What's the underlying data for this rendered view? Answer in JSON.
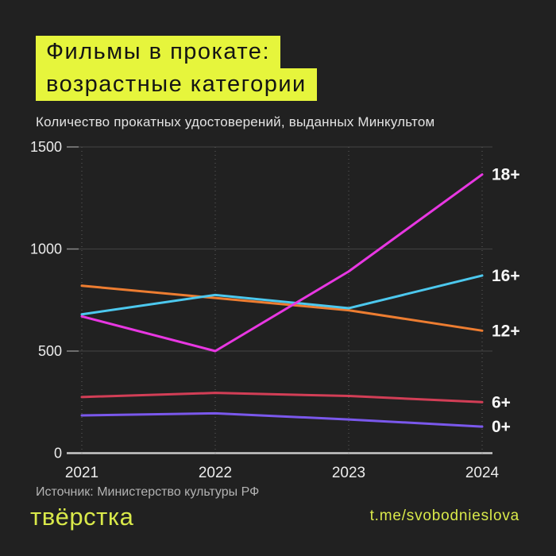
{
  "title": {
    "line1": "Фильмы в прокате:",
    "line2": "возрастные категории"
  },
  "subtitle": "Количество прокатных удостоверений, выданных Минкультом",
  "source": "Источник: Министерство культуры РФ",
  "footer": {
    "logo": "твёрстка",
    "link": "t.me/svobodnieslova"
  },
  "colors": {
    "background": "#212121",
    "accent_yellow": "#e6f53c",
    "footer_yellow": "#d9e94a",
    "grid": "#3f3f3f",
    "grid_dotted": "#5e5e5e",
    "axis": "#c9c9c9",
    "text_light": "#ececec",
    "series_label": "#f7f7f7"
  },
  "chart_data": {
    "type": "line",
    "x": [
      2021,
      2022,
      2023,
      2024
    ],
    "series": [
      {
        "name": "18+",
        "color": "#e837e2",
        "values": [
          670,
          500,
          890,
          1365
        ]
      },
      {
        "name": "16+",
        "color": "#4cc8ee",
        "values": [
          680,
          775,
          710,
          870
        ]
      },
      {
        "name": "12+",
        "color": "#ed7d31",
        "values": [
          820,
          760,
          700,
          600
        ]
      },
      {
        "name": "6+",
        "color": "#d23e56",
        "values": [
          275,
          295,
          280,
          250
        ]
      },
      {
        "name": "0+",
        "color": "#7a58ec",
        "values": [
          185,
          195,
          165,
          130
        ]
      }
    ],
    "yticks": [
      0,
      500,
      1000,
      1500
    ],
    "ylim": [
      0,
      1500
    ],
    "title": "Фильмы в прокате: возрастные категории",
    "xlabel": "",
    "ylabel": "Количество прокатных удостоверений, выданных Минкультом",
    "grid": {
      "horizontal": true,
      "vertical": "dotted"
    },
    "legend_position": "right-of-line-ends"
  }
}
